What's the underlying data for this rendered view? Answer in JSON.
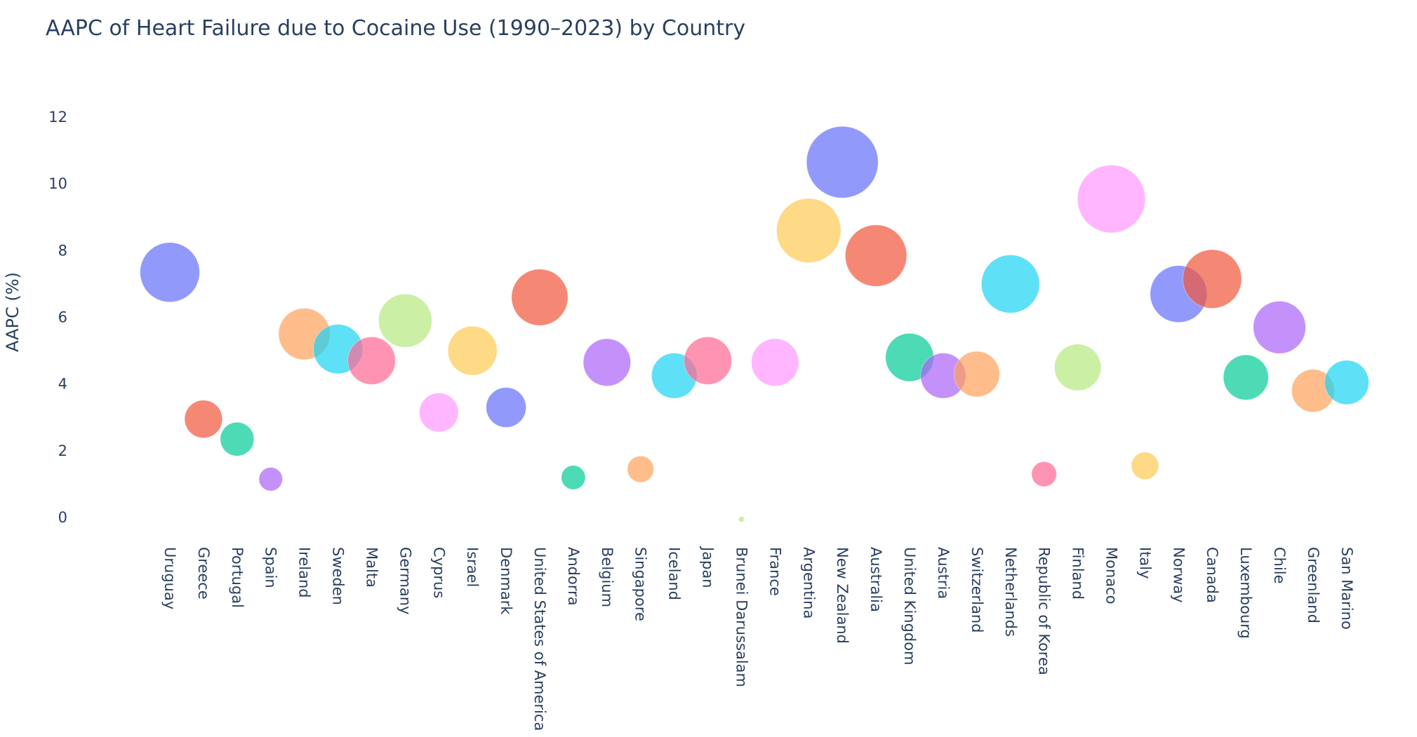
{
  "chart_data": {
    "type": "scatter",
    "title": "AAPC of Heart Failure due to Cocaine Use (1990–2023) by Country",
    "xlabel": "",
    "ylabel": "AAPC (%)",
    "ylim": [
      -0.9,
      14.0
    ],
    "yticks": [
      0,
      2,
      4,
      6,
      8,
      10,
      12
    ],
    "grid": false,
    "legend": "none",
    "marker_opacity": 0.7,
    "categories": [
      "Uruguay",
      "Greece",
      "Portugal",
      "Spain",
      "Ireland",
      "Sweden",
      "Malta",
      "Germany",
      "Cyprus",
      "Israel",
      "Denmark",
      "United States of America",
      "Andorra",
      "Belgium",
      "Singapore",
      "Iceland",
      "Japan",
      "Brunei Darussalam",
      "France",
      "Argentina",
      "New Zealand",
      "Australia",
      "United Kingdom",
      "Austria",
      "Switzerland",
      "Netherlands",
      "Republic of Korea",
      "Finland",
      "Monaco",
      "Italy",
      "Norway",
      "Canada",
      "Luxembourg",
      "Chile",
      "Greenland",
      "San Marino"
    ],
    "values": [
      7.35,
      2.95,
      2.35,
      1.15,
      5.5,
      5.05,
      4.7,
      5.9,
      3.15,
      5.0,
      3.3,
      6.6,
      1.2,
      4.65,
      1.45,
      4.25,
      4.7,
      -0.05,
      4.65,
      8.6,
      10.65,
      7.85,
      4.8,
      4.25,
      4.3,
      7.0,
      1.3,
      4.5,
      9.55,
      1.55,
      6.7,
      7.15,
      4.2,
      5.7,
      3.8,
      4.05
    ],
    "colors": [
      "#636efa",
      "#EF553B",
      "#00cc96",
      "#ab63fa",
      "#FFA15A",
      "#19d3f3",
      "#FF6692",
      "#B6E880",
      "#FF97FF",
      "#FECB52",
      "#636efa",
      "#EF553B",
      "#00cc96",
      "#ab63fa",
      "#FFA15A",
      "#19d3f3",
      "#FF6692",
      "#B6E880",
      "#FF97FF",
      "#FECB52",
      "#636efa",
      "#EF553B",
      "#00cc96",
      "#ab63fa",
      "#FFA15A",
      "#19d3f3",
      "#FF6692",
      "#B6E880",
      "#FF97FF",
      "#FECB52",
      "#636efa",
      "#EF553B",
      "#00cc96",
      "#ab63fa",
      "#FFA15A",
      "#19d3f3"
    ]
  }
}
